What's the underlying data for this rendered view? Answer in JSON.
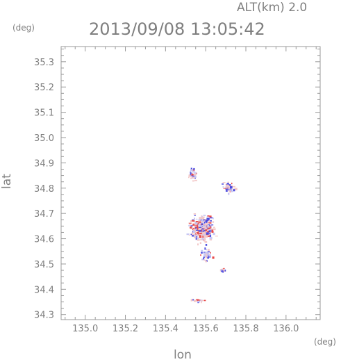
{
  "chart_data": {
    "type": "scatter",
    "title": "2013/09/08 13:05:42",
    "subtitle": "ALT(km) 2.0",
    "xlabel": "lon",
    "ylabel": "lat",
    "xunit": "(deg)",
    "yunit": "(deg)",
    "xlim": [
      134.88,
      136.17
    ],
    "ylim": [
      34.28,
      35.36
    ],
    "xticks": [
      "135.0",
      "135.2",
      "135.4",
      "135.6",
      "135.8",
      "136.0"
    ],
    "yticks": [
      "34.3",
      "34.4",
      "34.5",
      "34.6",
      "34.7",
      "34.8",
      "34.9",
      "35.0",
      "35.1",
      "35.2",
      "35.3"
    ],
    "xtick_values": [
      135.0,
      135.2,
      135.4,
      135.6,
      135.8,
      136.0
    ],
    "ytick_values": [
      34.3,
      34.4,
      34.5,
      34.6,
      34.7,
      34.8,
      34.9,
      35.0,
      35.1,
      35.2,
      35.3
    ],
    "grid": false,
    "colors": {
      "positive": "#e84a4a",
      "negative": "#4b4be0",
      "light_positive": "#f3c8c8",
      "light_negative": "#c8c8f3"
    },
    "clusters": [
      {
        "lon": 135.53,
        "lat": 34.855,
        "spread_lon": 0.025,
        "spread_lat": 0.035,
        "n": 40
      },
      {
        "lon": 135.71,
        "lat": 34.805,
        "spread_lon": 0.04,
        "spread_lat": 0.03,
        "n": 45
      },
      {
        "lon": 135.58,
        "lat": 34.64,
        "spread_lon": 0.08,
        "spread_lat": 0.07,
        "n": 320
      },
      {
        "lon": 135.6,
        "lat": 34.54,
        "spread_lon": 0.04,
        "spread_lat": 0.03,
        "n": 40
      },
      {
        "lon": 135.68,
        "lat": 34.48,
        "spread_lon": 0.015,
        "spread_lat": 0.01,
        "n": 12
      },
      {
        "lon": 135.55,
        "lat": 34.36,
        "spread_lon": 0.05,
        "spread_lat": 0.01,
        "n": 15
      }
    ]
  }
}
